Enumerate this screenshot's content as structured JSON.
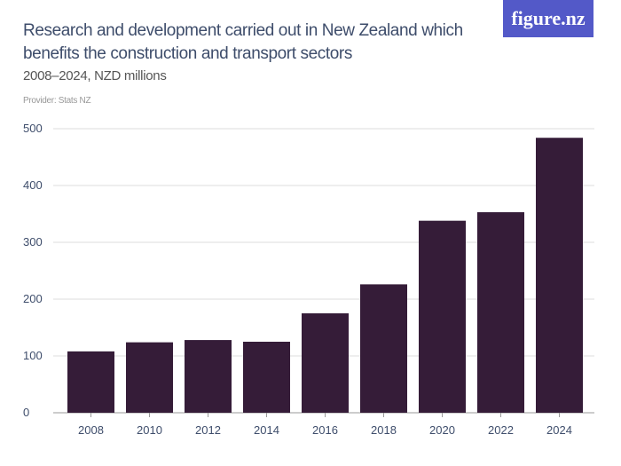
{
  "header": {
    "title": "Research and development carried out in New Zealand which benefits the construction and transport sectors",
    "subtitle": "2008–2024, NZD millions",
    "provider": "Provider: Stats NZ",
    "logo": "figure.nz"
  },
  "colors": {
    "bar": "#351c38",
    "logo_bg": "#5359c8",
    "grid": "#dddddd",
    "text": "#3e4d6b"
  },
  "chart_data": {
    "type": "bar",
    "title": "Research and development carried out in New Zealand which benefits the construction and transport sectors",
    "subtitle": "2008–2024, NZD millions",
    "categories": [
      "2008",
      "2010",
      "2012",
      "2014",
      "2016",
      "2018",
      "2020",
      "2022",
      "2024"
    ],
    "values": [
      108,
      124,
      128,
      125,
      175,
      226,
      338,
      353,
      484
    ],
    "xlabel": "",
    "ylabel": "",
    "ylim": [
      0,
      500
    ],
    "yticks": [
      "0",
      "100",
      "200",
      "300",
      "400",
      "500"
    ],
    "grid": true
  }
}
